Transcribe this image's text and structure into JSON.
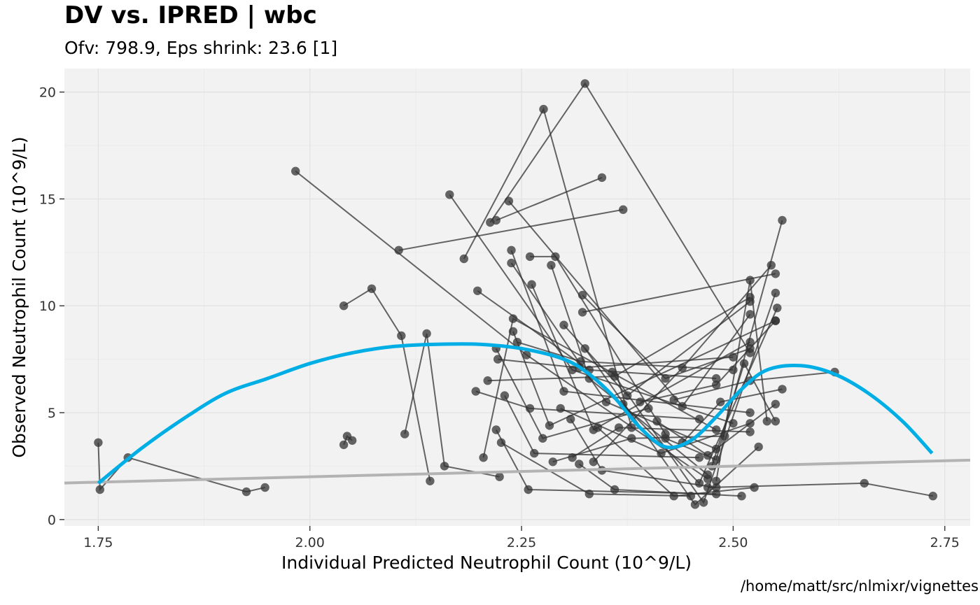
{
  "chart_data": {
    "type": "scatter",
    "title": "DV vs. IPRED | wbc",
    "subtitle": "Ofv: 798.9, Eps shrink: 23.6 [1]",
    "caption": "/home/matt/src/nlmixr/vignettes",
    "xlabel": "Individual Predicted Neutrophil Count (10^9/L)",
    "ylabel": "Observed Neutrophil Count (10^9/L)",
    "xlim": [
      1.71,
      2.78
    ],
    "ylim": [
      -0.3,
      21.1
    ],
    "x_ticks": [
      1.75,
      2.0,
      2.25,
      2.5,
      2.75
    ],
    "x_tick_labels": [
      "1.75",
      "2.00",
      "2.25",
      "2.50",
      "2.75"
    ],
    "y_ticks": [
      0,
      5,
      10,
      15,
      20
    ],
    "y_tick_labels": [
      "0",
      "5",
      "10",
      "15",
      "20"
    ],
    "grid": true,
    "colors": {
      "panel": "#f2f2f2",
      "grid_major": "#e3e3e3",
      "grid_minor": "#ebebeb",
      "points": "#333333",
      "lines": "#333333",
      "smooth": "#00aee6",
      "identity": "#b3b3b3"
    },
    "identity_line": {
      "x": [
        1.71,
        2.78
      ],
      "y": [
        1.71,
        2.78
      ]
    },
    "smooth": {
      "x": [
        1.75,
        1.8,
        1.85,
        1.9,
        1.95,
        2.0,
        2.05,
        2.1,
        2.15,
        2.2,
        2.25,
        2.3,
        2.33,
        2.36,
        2.39,
        2.42,
        2.45,
        2.48,
        2.51,
        2.54,
        2.58,
        2.62,
        2.66,
        2.7,
        2.735
      ],
      "y": [
        1.7,
        3.3,
        4.7,
        5.9,
        6.6,
        7.3,
        7.8,
        8.1,
        8.2,
        8.2,
        8.0,
        7.5,
        6.8,
        5.7,
        4.3,
        3.4,
        3.7,
        4.8,
        6.1,
        7.0,
        7.2,
        6.8,
        5.9,
        4.6,
        3.1
      ]
    },
    "subjects": [
      {
        "x": [
          1.75,
          1.752,
          1.785,
          1.925,
          1.947
        ],
        "y": [
          3.6,
          1.4,
          2.9,
          1.3,
          1.5
        ]
      },
      {
        "x": [
          2.04,
          2.073,
          2.108,
          2.142
        ],
        "y": [
          10.0,
          10.8,
          8.6,
          1.8
        ]
      },
      {
        "x": [
          2.04,
          2.044,
          2.05
        ],
        "y": [
          3.5,
          3.9,
          3.7
        ]
      },
      {
        "x": [
          1.983,
          2.256,
          2.47
        ],
        "y": [
          16.3,
          7.7,
          1.9
        ]
      },
      {
        "x": [
          2.105,
          2.37
        ],
        "y": [
          12.6,
          14.5
        ]
      },
      {
        "x": [
          2.112,
          2.138,
          2.159,
          2.224
        ],
        "y": [
          4.0,
          8.7,
          2.5,
          2.0
        ]
      },
      {
        "x": [
          2.182,
          2.276,
          2.38
        ],
        "y": [
          12.2,
          19.2,
          4.3
        ]
      },
      {
        "x": [
          2.165,
          2.31,
          2.5
        ],
        "y": [
          15.2,
          7.0,
          4.5
        ]
      },
      {
        "x": [
          2.213,
          2.325,
          2.52
        ],
        "y": [
          13.9,
          20.4,
          7.8
        ]
      },
      {
        "x": [
          2.235,
          2.44,
          2.52
        ],
        "y": [
          14.9,
          5.3,
          9.6
        ]
      },
      {
        "x": [
          2.22,
          2.345
        ],
        "y": [
          14.0,
          16.0
        ]
      },
      {
        "x": [
          2.198,
          2.33,
          2.48
        ],
        "y": [
          10.7,
          7.0,
          6.6
        ]
      },
      {
        "x": [
          2.21,
          2.36,
          2.52
        ],
        "y": [
          6.5,
          6.7,
          10.4
        ]
      },
      {
        "x": [
          2.205,
          2.24,
          2.48
        ],
        "y": [
          2.9,
          9.4,
          4.2
        ]
      },
      {
        "x": [
          2.196,
          2.26,
          2.46
        ],
        "y": [
          6.0,
          5.2,
          4.7
        ]
      },
      {
        "x": [
          2.238,
          2.3,
          2.52
        ],
        "y": [
          12.6,
          6.0,
          5.0
        ]
      },
      {
        "x": [
          2.238,
          2.35,
          2.48
        ],
        "y": [
          12.0,
          5.5,
          3.3
        ]
      },
      {
        "x": [
          2.26,
          2.29,
          2.42
        ],
        "y": [
          12.3,
          12.3,
          4.0
        ]
      },
      {
        "x": [
          2.262,
          2.335,
          2.52
        ],
        "y": [
          11.0,
          4.2,
          8.3
        ]
      },
      {
        "x": [
          2.285,
          2.33,
          2.47
        ],
        "y": [
          11.9,
          6.6,
          2.1
        ]
      },
      {
        "x": [
          2.245,
          2.32,
          2.5
        ],
        "y": [
          8.3,
          7.4,
          7.0
        ]
      },
      {
        "x": [
          2.24,
          2.283,
          2.55
        ],
        "y": [
          8.8,
          4.4,
          9.3
        ]
      },
      {
        "x": [
          2.22,
          2.275,
          2.4
        ],
        "y": [
          8.0,
          3.8,
          5.2
        ]
      },
      {
        "x": [
          2.222,
          2.318,
          2.5
        ],
        "y": [
          7.5,
          7.1,
          7.6
        ]
      },
      {
        "x": [
          2.23,
          2.265,
          2.46
        ],
        "y": [
          5.8,
          3.1,
          2.9
        ]
      },
      {
        "x": [
          2.22,
          2.258,
          2.48
        ],
        "y": [
          4.2,
          1.4,
          1.2
        ]
      },
      {
        "x": [
          2.226,
          2.33,
          2.45
        ],
        "y": [
          3.6,
          1.2,
          1.1
        ]
      },
      {
        "x": [
          2.3,
          2.375,
          2.52
        ],
        "y": [
          9.1,
          5.8,
          10.2
        ]
      },
      {
        "x": [
          2.322,
          2.55
        ],
        "y": [
          9.7,
          11.5
        ]
      },
      {
        "x": [
          2.322,
          2.42,
          2.52
        ],
        "y": [
          10.5,
          6.6,
          8.0
        ]
      },
      {
        "x": [
          2.325,
          2.455,
          2.53
        ],
        "y": [
          8.0,
          0.7,
          3.4
        ]
      },
      {
        "x": [
          2.296,
          2.415,
          2.52
        ],
        "y": [
          5.2,
          3.1,
          4.5
        ]
      },
      {
        "x": [
          2.287,
          2.38,
          2.49
        ],
        "y": [
          2.7,
          3.8,
          3.9
        ]
      },
      {
        "x": [
          2.308,
          2.345,
          2.48
        ],
        "y": [
          4.7,
          2.3,
          1.5
        ]
      },
      {
        "x": [
          2.318,
          2.36,
          2.51
        ],
        "y": [
          2.6,
          1.4,
          1.1
        ]
      },
      {
        "x": [
          2.34,
          2.43,
          2.525
        ],
        "y": [
          4.3,
          1.1,
          1.5
        ]
      },
      {
        "x": [
          2.31,
          2.365,
          2.52
        ],
        "y": [
          2.9,
          4.3,
          4.1
        ]
      },
      {
        "x": [
          2.335,
          2.44,
          2.545
        ],
        "y": [
          2.7,
          7.1,
          11.9
        ]
      },
      {
        "x": [
          2.357,
          2.465,
          2.55
        ],
        "y": [
          6.9,
          0.8,
          10.6
        ]
      },
      {
        "x": [
          2.37,
          2.46,
          2.552
        ],
        "y": [
          5.4,
          1.7,
          9.9
        ]
      },
      {
        "x": [
          2.39,
          2.48,
          2.55
        ],
        "y": [
          5.5,
          6.3,
          9.3
        ]
      },
      {
        "x": [
          2.41,
          2.47,
          2.55
        ],
        "y": [
          4.6,
          3.0,
          5.4
        ]
      },
      {
        "x": [
          2.42,
          2.48,
          2.558
        ],
        "y": [
          3.8,
          2.8,
          14.0
        ]
      },
      {
        "x": [
          2.44,
          2.485,
          2.558
        ],
        "y": [
          3.6,
          5.5,
          6.1
        ]
      },
      {
        "x": [
          2.43,
          2.52,
          2.62
        ],
        "y": [
          5.6,
          6.5,
          6.9
        ]
      },
      {
        "x": [
          2.47,
          2.655,
          2.736
        ],
        "y": [
          1.5,
          1.7,
          1.1
        ]
      },
      {
        "x": [
          2.48,
          2.52,
          2.54
        ],
        "y": [
          1.8,
          11.2,
          4.6
        ]
      },
      {
        "x": [
          2.475,
          2.513,
          2.55
        ],
        "y": [
          2.5,
          7.3,
          4.6
        ]
      }
    ]
  }
}
